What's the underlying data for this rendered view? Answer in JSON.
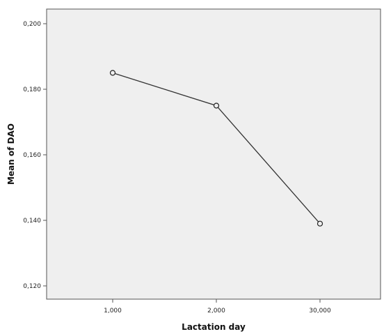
{
  "chart_data": {
    "type": "line",
    "title": "",
    "xlabel": "Lactation day",
    "ylabel": "Mean of DAO",
    "categories": [
      "1,000",
      "2,000",
      "30,000"
    ],
    "series": [
      {
        "values": [
          0.185,
          0.175,
          0.139
        ]
      }
    ],
    "ylim": [
      0.12,
      0.2
    ],
    "yticks": [
      0.12,
      0.14,
      0.16,
      0.18,
      0.2
    ],
    "ytick_labels": [
      "0,120",
      "0,140",
      "0,160",
      "0,180",
      "0,200"
    ],
    "grid": false,
    "plot_background": "#efefef",
    "line_color": "#333333",
    "marker": "open-circle"
  }
}
